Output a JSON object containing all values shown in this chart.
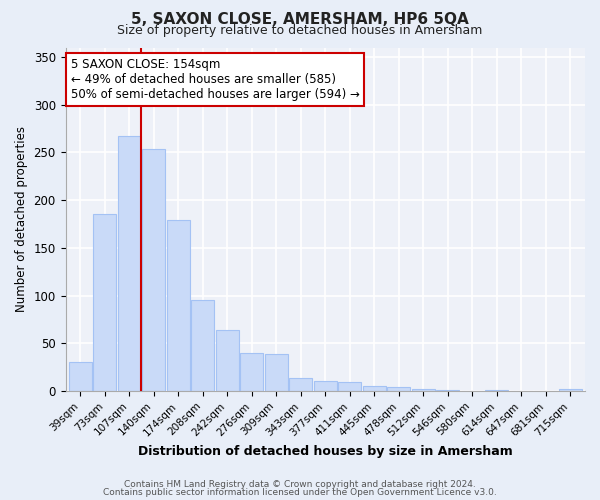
{
  "title": "5, SAXON CLOSE, AMERSHAM, HP6 5QA",
  "subtitle": "Size of property relative to detached houses in Amersham",
  "xlabel": "Distribution of detached houses by size in Amersham",
  "ylabel": "Number of detached properties",
  "bar_labels": [
    "39sqm",
    "73sqm",
    "107sqm",
    "140sqm",
    "174sqm",
    "208sqm",
    "242sqm",
    "276sqm",
    "309sqm",
    "343sqm",
    "377sqm",
    "411sqm",
    "445sqm",
    "478sqm",
    "512sqm",
    "546sqm",
    "580sqm",
    "614sqm",
    "647sqm",
    "681sqm",
    "715sqm"
  ],
  "bar_values": [
    30,
    185,
    267,
    254,
    179,
    95,
    64,
    40,
    39,
    14,
    10,
    9,
    5,
    4,
    2,
    1,
    0,
    1,
    0,
    0,
    2
  ],
  "bar_color": "#c9daf8",
  "bar_edge_color": "#a4c2f4",
  "vline_color": "#cc0000",
  "vline_x_index": 3,
  "annotation_title": "5 SAXON CLOSE: 154sqm",
  "annotation_line1": "← 49% of detached houses are smaller (585)",
  "annotation_line2": "50% of semi-detached houses are larger (594) →",
  "annotation_box_color": "#ffffff",
  "annotation_box_edge": "#cc0000",
  "ylim": [
    0,
    360
  ],
  "yticks": [
    0,
    50,
    100,
    150,
    200,
    250,
    300,
    350
  ],
  "footer1": "Contains HM Land Registry data © Crown copyright and database right 2024.",
  "footer2": "Contains public sector information licensed under the Open Government Licence v3.0.",
  "bg_color": "#e8eef8",
  "plot_bg_color": "#eef1f8"
}
